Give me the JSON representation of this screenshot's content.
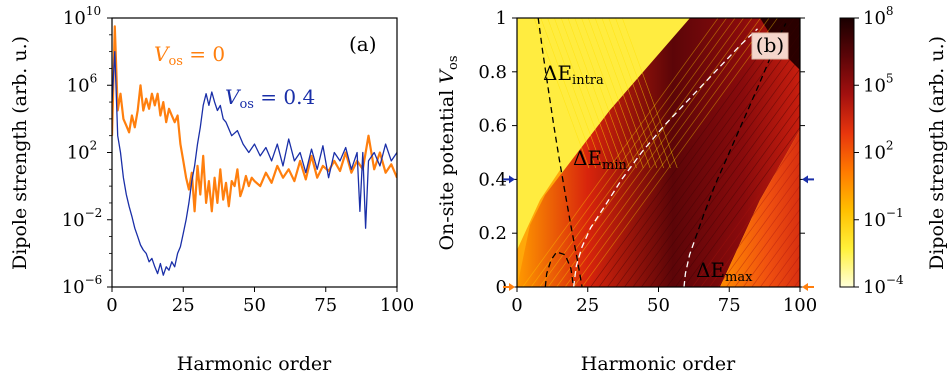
{
  "chart_data": [
    {
      "type": "line",
      "panel_label": "(a)",
      "xlabel": "Harmonic order",
      "ylabel": "Dipole strength (arb. u.)",
      "xlim": [
        0,
        100
      ],
      "ylim_log10": [
        -6,
        10
      ],
      "yscale": "log",
      "xticks": [
        "0",
        "25",
        "50",
        "75",
        "100"
      ],
      "yticks": [
        {
          "base": "10",
          "exp": "−6"
        },
        {
          "base": "10",
          "exp": "−2"
        },
        {
          "base": "10",
          "exp": "2"
        },
        {
          "base": "10",
          "exp": "6"
        },
        {
          "base": "10",
          "exp": "10"
        }
      ],
      "series": [
        {
          "name": "V_os = 0",
          "label_main": "V",
          "label_sub": "os",
          "label_rest": " = 0",
          "color": "#ff7f0e",
          "x": [
            0,
            1,
            2,
            3,
            4,
            5,
            6,
            7,
            8,
            9,
            10,
            11,
            12,
            13,
            14,
            15,
            16,
            17,
            18,
            19,
            20,
            21,
            22,
            23,
            24,
            25,
            26,
            27,
            28,
            29,
            30,
            31,
            32,
            33,
            34,
            35,
            36,
            37,
            38,
            39,
            40,
            41,
            42,
            43,
            44,
            45,
            46,
            47,
            48,
            49,
            50,
            52,
            54,
            56,
            58,
            60,
            62,
            64,
            66,
            68,
            70,
            72,
            74,
            76,
            78,
            80,
            82,
            84,
            86,
            88,
            90,
            92,
            94,
            96,
            98,
            100
          ],
          "log10_y": [
            3.0,
            9.5,
            4.5,
            5.5,
            4.0,
            3.6,
            3.2,
            4.2,
            3.5,
            4.5,
            6.0,
            4.5,
            5.2,
            4.6,
            5.5,
            4.8,
            5.5,
            4.2,
            5.0,
            3.8,
            4.6,
            4.2,
            3.8,
            4.2,
            2.5,
            1.5,
            0.5,
            -0.2,
            0.8,
            -1.5,
            1.2,
            -0.5,
            1.8,
            -1.0,
            0.3,
            -1.5,
            0.5,
            -1.0,
            1.0,
            -0.8,
            0.2,
            -1.2,
            0.3,
            0.0,
            1.0,
            -0.6,
            -0.1,
            0.6,
            0.0,
            0.5,
            0.3,
            0.0,
            0.8,
            0.2,
            1.2,
            0.5,
            1.0,
            0.3,
            1.5,
            0.4,
            1.8,
            0.5,
            1.2,
            0.9,
            1.5,
            0.9,
            2.0,
            0.8,
            1.5,
            1.0,
            3.0,
            1.0,
            2.0,
            0.8,
            1.3,
            0.5
          ]
        },
        {
          "name": "V_os = 0.4",
          "label_main": "V",
          "label_sub": "os",
          "label_rest": " = 0.4",
          "color": "#1a2fa8",
          "x": [
            0,
            1,
            2,
            3,
            4,
            5,
            6,
            7,
            8,
            9,
            10,
            11,
            12,
            13,
            14,
            15,
            16,
            17,
            18,
            19,
            20,
            21,
            22,
            23,
            24,
            25,
            26,
            27,
            28,
            29,
            30,
            31,
            32,
            33,
            34,
            35,
            36,
            37,
            38,
            39,
            40,
            42,
            44,
            46,
            48,
            50,
            52,
            54,
            56,
            58,
            60,
            62,
            64,
            66,
            68,
            70,
            72,
            74,
            76,
            78,
            80,
            82,
            84,
            86,
            87,
            88,
            89,
            90,
            92,
            94,
            96,
            98,
            100
          ],
          "log10_y": [
            5.0,
            8.0,
            3.0,
            2.0,
            0.5,
            -0.5,
            -1.2,
            -1.8,
            -2.5,
            -3.0,
            -3.5,
            -3.8,
            -4.0,
            -4.5,
            -4.3,
            -4.8,
            -5.2,
            -4.6,
            -5.3,
            -4.8,
            -5.0,
            -4.5,
            -4.8,
            -4.0,
            -3.6,
            -2.8,
            -2.0,
            -1.0,
            0.3,
            1.2,
            2.5,
            3.5,
            4.8,
            5.5,
            4.8,
            5.6,
            5.0,
            4.5,
            4.8,
            4.0,
            3.8,
            3.0,
            3.3,
            2.5,
            2.0,
            2.5,
            1.8,
            2.3,
            1.5,
            2.5,
            1.2,
            2.8,
            1.5,
            2.0,
            0.8,
            2.2,
            1.0,
            2.4,
            0.5,
            2.0,
            1.5,
            2.3,
            1.0,
            2.0,
            -1.5,
            2.0,
            -2.5,
            1.5,
            2.0,
            1.2,
            2.5,
            1.5,
            2.0
          ]
        }
      ]
    },
    {
      "type": "heatmap",
      "panel_label": "(b)",
      "xlabel": "Harmonic order",
      "ylabel_main": "On-site potential ",
      "ylabel_var": "V",
      "ylabel_sub": "os",
      "xlim": [
        0,
        100
      ],
      "ylim": [
        0,
        1
      ],
      "xticks": [
        "0",
        "25",
        "50",
        "75",
        "100"
      ],
      "yticks": [
        "0",
        "0.2",
        "0.4",
        "0.6",
        "0.8",
        "1"
      ],
      "colorbar": {
        "label": "Dipole strength (arb. u.)",
        "scale": "log",
        "ticks": [
          {
            "base": "10",
            "exp": "−4"
          },
          {
            "base": "10",
            "exp": "−1"
          },
          {
            "base": "10",
            "exp": "2"
          },
          {
            "base": "10",
            "exp": "5"
          },
          {
            "base": "10",
            "exp": "8"
          }
        ],
        "colors": [
          "#ffffd9",
          "#fff13a",
          "#ffbf00",
          "#ff7a00",
          "#e8360d",
          "#a3100f",
          "#5c0508",
          "#1a0000"
        ]
      },
      "curves": [
        {
          "label_main": "ΔE",
          "label_sub": "intra",
          "style": "dashed",
          "color": "#000000",
          "x": [
            7.5,
            9,
            11,
            13,
            15,
            17,
            19,
            21,
            23
          ],
          "y": [
            1.0,
            0.88,
            0.74,
            0.6,
            0.47,
            0.35,
            0.23,
            0.12,
            0.0
          ]
        },
        {
          "label_main": "ΔE",
          "label_sub": "min",
          "style": "dashed",
          "color": "#ffffff",
          "x": [
            20,
            21,
            23,
            26,
            31,
            37,
            44,
            52,
            61,
            70,
            79,
            85
          ],
          "y": [
            0.0,
            0.08,
            0.15,
            0.22,
            0.3,
            0.4,
            0.5,
            0.6,
            0.7,
            0.8,
            0.9,
            0.96
          ]
        },
        {
          "label_main": "",
          "label_sub": "",
          "style": "dashed",
          "color": "#000000",
          "x": [
            10,
            10.5,
            12,
            14,
            17,
            19,
            20
          ],
          "y": [
            0.0,
            0.05,
            0.1,
            0.13,
            0.12,
            0.07,
            0.0
          ]
        },
        {
          "label_main": "ΔE",
          "label_sub": "max",
          "style": "dashed",
          "color": "#ffffff",
          "x": [
            59,
            59.5,
            61,
            63
          ],
          "y": [
            0.0,
            0.05,
            0.12,
            0.18
          ]
        },
        {
          "label_main": "",
          "label_sub": "",
          "style": "dashed",
          "color": "#000000",
          "x": [
            63,
            66,
            70,
            75,
            80,
            85,
            89,
            92,
            95
          ],
          "y": [
            0.18,
            0.27,
            0.38,
            0.5,
            0.62,
            0.74,
            0.84,
            0.92,
            0.98
          ]
        }
      ],
      "arrows": [
        {
          "y": 0.4,
          "color": "#1a2fa8"
        },
        {
          "y": 0.0,
          "color": "#ff7f0e"
        }
      ],
      "panel_label_bg": "#f5d6cc"
    }
  ]
}
